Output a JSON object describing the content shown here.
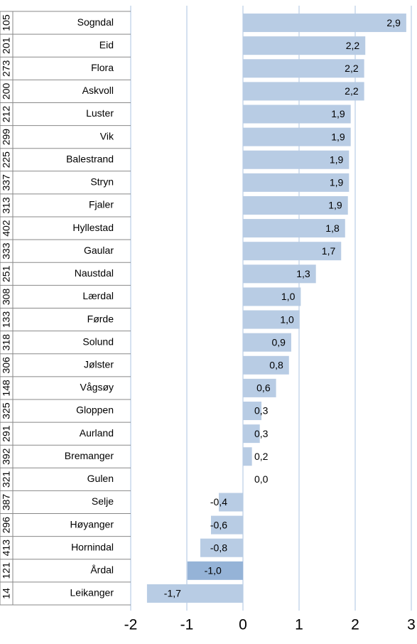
{
  "chart_data": {
    "type": "hbar",
    "ranks": [
      "105",
      "201",
      "273",
      "200",
      "212",
      "299",
      "225",
      "337",
      "313",
      "402",
      "333",
      "251",
      "308",
      "133",
      "318",
      "306",
      "148",
      "325",
      "291",
      "392",
      "321",
      "387",
      "296",
      "413",
      "121",
      "14"
    ],
    "categories": [
      "Sogndal",
      "Eid",
      "Flora",
      "Askvoll",
      "Luster",
      "Vik",
      "Balestrand",
      "Stryn",
      "Fjaler",
      "Hyllestad",
      "Gaular",
      "Naustdal",
      "Lærdal",
      "Førde",
      "Solund",
      "Jølster",
      "Vågsøy",
      "Gloppen",
      "Aurland",
      "Bremanger",
      "Gulen",
      "Selje",
      "Høyanger",
      "Hornindal",
      "Årdal",
      "Leikanger"
    ],
    "values": [
      2.91,
      2.18,
      2.16,
      2.16,
      1.92,
      1.92,
      1.89,
      1.89,
      1.87,
      1.82,
      1.75,
      1.3,
      1.03,
      1.01,
      0.86,
      0.82,
      0.59,
      0.33,
      0.3,
      0.16,
      0,
      -0.43,
      -0.57,
      -0.76,
      -0.99,
      -1.71
    ],
    "value_labels": [
      "2,9",
      "2,2",
      "2,2",
      "2,2",
      "1,9",
      "1,9",
      "1,9",
      "1,9",
      "1,9",
      "1,8",
      "1,7",
      "1,3",
      "1,0",
      "1,0",
      "0,9",
      "0,8",
      "0,6",
      "0,3",
      "0,3",
      "0,2",
      "0,0",
      "-0,4",
      "-0,6",
      "-0,8",
      "-1,0",
      "-1,7"
    ],
    "colors": [
      "#b8cce4",
      "#b8cce4",
      "#b8cce4",
      "#b8cce4",
      "#b8cce4",
      "#b8cce4",
      "#b8cce4",
      "#b8cce4",
      "#b8cce4",
      "#b8cce4",
      "#b8cce4",
      "#b8cce4",
      "#b8cce4",
      "#b8cce4",
      "#b8cce4",
      "#b8cce4",
      "#b8cce4",
      "#b8cce4",
      "#b8cce4",
      "#b8cce4",
      "#b8cce4",
      "#b8cce4",
      "#b8cce4",
      "#b8cce4",
      "#95b3d7",
      "#b8cce4"
    ],
    "xlim": [
      -2,
      3
    ],
    "xticks": [
      -2,
      -1,
      0,
      1,
      2,
      3
    ],
    "grid": true
  }
}
